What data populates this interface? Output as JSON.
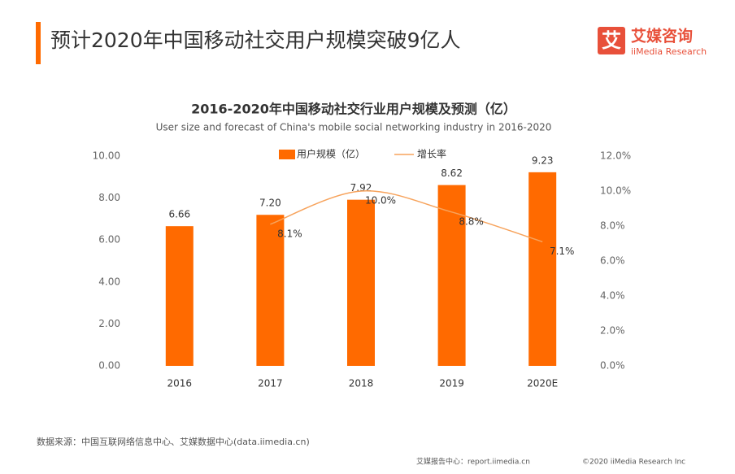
{
  "header": {
    "title": "预计2020年中国移动社交用户规模突破9亿人",
    "logo_icon": "艾",
    "logo_name": "艾媒咨询",
    "logo_sub": "iiMedia Research"
  },
  "chart_data": {
    "type": "bar",
    "title": "2016-2020年中国移动社交行业用户规模及预测（亿）",
    "subtitle": "User size and forecast of China's mobile social  networking industry in 2016-2020",
    "categories": [
      "2016",
      "2017",
      "2018",
      "2019",
      "2020E"
    ],
    "series": [
      {
        "name": "用户规模（亿）",
        "color": "#ff6a00",
        "values": [
          6.66,
          7.2,
          7.92,
          8.62,
          9.23
        ],
        "value_labels": [
          "6.66",
          "7.20",
          "7.92",
          "8.62",
          "9.23"
        ]
      },
      {
        "name": "增长率",
        "color": "#f7a35c",
        "axis": "y2",
        "type": "line",
        "values": [
          null,
          8.1,
          10.0,
          8.8,
          7.1
        ],
        "value_labels": [
          null,
          "8.1%",
          "10.0%",
          "8.8%",
          "7.1%"
        ]
      }
    ],
    "ylim": [
      0,
      10
    ],
    "yticks": [
      {
        "value": 0,
        "label": "0.00"
      },
      {
        "value": 2,
        "label": "2.00"
      },
      {
        "value": 4,
        "label": "4.00"
      },
      {
        "value": 6,
        "label": "6.00"
      },
      {
        "value": 8,
        "label": "8.00"
      },
      {
        "value": 10,
        "label": "10.00"
      }
    ],
    "y2lim": [
      0,
      12
    ],
    "y2ticks": [
      {
        "value": 0,
        "label": "0.0%"
      },
      {
        "value": 2,
        "label": "2.0%"
      },
      {
        "value": 4,
        "label": "4.0%"
      },
      {
        "value": 6,
        "label": "6.0%"
      },
      {
        "value": 8,
        "label": "8.0%"
      },
      {
        "value": 10,
        "label": "10.0%"
      },
      {
        "value": 12,
        "label": "12.0%"
      }
    ],
    "legend": "top",
    "grid": false
  },
  "footer": {
    "source": "数据来源：中国互联网络信息中心、艾媒数据中心(data.iimedia.cn)",
    "report": "艾媒报告中心：report.iimedia.cn",
    "copyright": "©2020  iiMedia Research  Inc"
  }
}
